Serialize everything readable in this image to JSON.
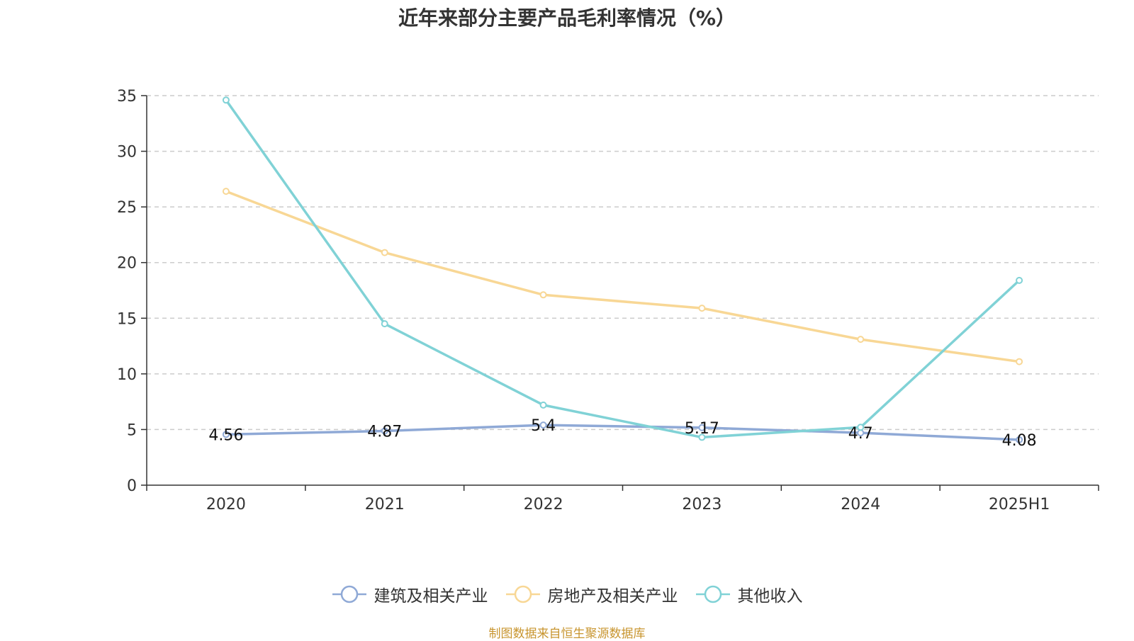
{
  "chart_data": {
    "type": "line",
    "title": "近年来部分主要产品毛利率情况（%）",
    "categories": [
      "2020",
      "2021",
      "2022",
      "2023",
      "2024",
      "2025H1"
    ],
    "ylim": [
      0,
      35
    ],
    "yticks": [
      0,
      5,
      10,
      15,
      20,
      25,
      30,
      35
    ],
    "grid": true,
    "legend_position": "bottom",
    "series": [
      {
        "name": "建筑及相关产业",
        "color": "#8fa9d6",
        "values": [
          4.56,
          4.87,
          5.4,
          5.17,
          4.7,
          4.08
        ],
        "labels": [
          "4.56",
          "4.87",
          "5.4",
          "5.17",
          "4.7",
          "4.08"
        ]
      },
      {
        "name": "房地产及相关产业",
        "color": "#f8d795",
        "values": [
          26.4,
          20.9,
          17.1,
          15.9,
          13.1,
          11.1
        ]
      },
      {
        "name": "其他收入",
        "color": "#80d2d6",
        "values": [
          34.6,
          14.5,
          7.2,
          4.3,
          5.2,
          18.4
        ]
      }
    ]
  },
  "footer": {
    "source": "制图数据来自恒生聚源数据库"
  }
}
